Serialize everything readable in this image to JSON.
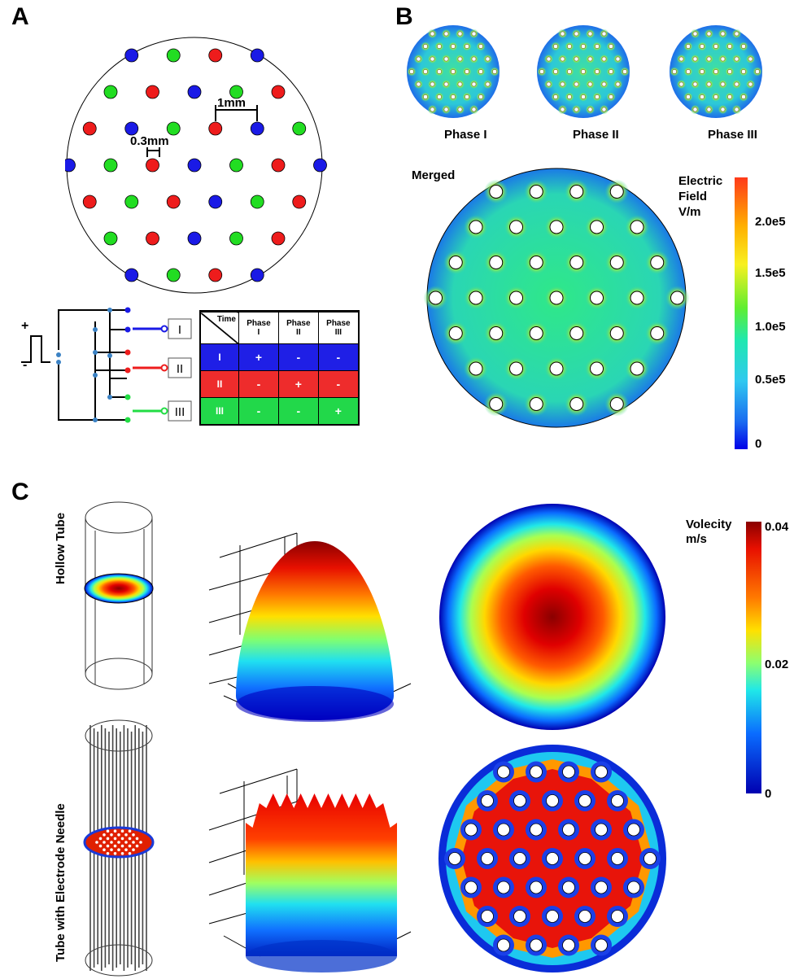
{
  "panels": {
    "a": "A",
    "b": "B",
    "c": "C"
  },
  "panel_a": {
    "dim_spacing": "1mm",
    "dim_diameter": "0.3mm",
    "pulse_plus": "+",
    "pulse_minus": "-",
    "channels": [
      "I",
      "II",
      "III"
    ],
    "table": {
      "corner": "Time",
      "headers": [
        {
          "line1": "Phase",
          "line2": "I"
        },
        {
          "line1": "Phase",
          "line2": "II"
        },
        {
          "line1": "Phase",
          "line2": "III"
        }
      ],
      "rows": [
        {
          "label": "I",
          "cells": [
            "+",
            "-",
            "-"
          ],
          "color": "#1f1fe6"
        },
        {
          "label": "II",
          "cells": [
            "-",
            "+",
            "-"
          ],
          "color": "#ee2c2c"
        },
        {
          "label": "III",
          "cells": [
            "-",
            "-",
            "+"
          ],
          "color": "#22d84a"
        }
      ]
    }
  },
  "panel_b": {
    "phases": [
      "Phase I",
      "Phase II",
      "Phase III"
    ],
    "merged_label": "Merged",
    "colorbar": {
      "title_line1": "Electric",
      "title_line2": "Field",
      "title_line3": "V/m",
      "ticks": [
        "2.0e5",
        "1.5e5",
        "1.0e5",
        "0.5e5",
        "0"
      ]
    }
  },
  "panel_c": {
    "rows": [
      "Hollow Tube",
      "Tube with Electrode Needle"
    ],
    "colorbar": {
      "title_line1": "Volecity",
      "title_line2": "m/s",
      "ticks": [
        "0.04",
        "0.02",
        "0"
      ]
    }
  },
  "colors": {
    "electrode_red": "#ee1c1c",
    "electrode_green": "#22dd22",
    "electrode_blue": "#1a1ae6",
    "wire_blue": "#1a1ae6",
    "wire_red": "#ee1c1c",
    "wire_green": "#22dd44"
  }
}
